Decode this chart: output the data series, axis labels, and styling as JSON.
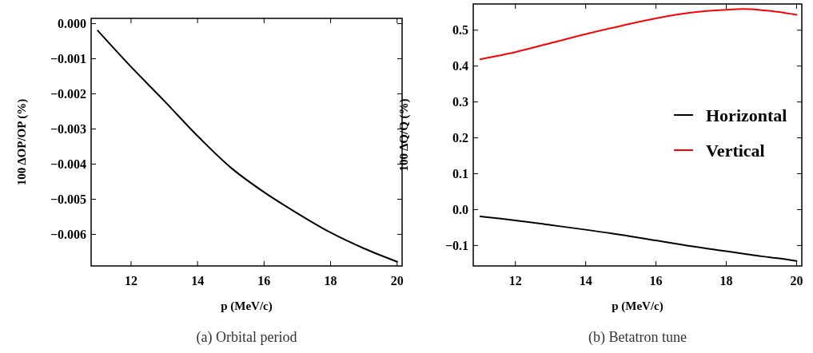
{
  "chart_data": [
    {
      "type": "line",
      "xlabel": "p (MeV/c)",
      "ylabel": "100 ΔOP/OP (%)",
      "annotations": [
        "(a) Orbital period"
      ],
      "x": [
        11,
        12,
        13,
        14,
        15,
        16,
        17,
        18,
        19,
        20
      ],
      "series": [
        {
          "color": "#000000",
          "values": [
            -0.0002,
            -0.00123,
            -0.0022,
            -0.0032,
            -0.0041,
            -0.0048,
            -0.0054,
            -0.00595,
            -0.0064,
            -0.00678
          ]
        }
      ],
      "xlim": [
        10.8,
        20.15
      ],
      "ylim": [
        -0.0069,
        0.00015
      ],
      "xticks": [
        12,
        14,
        16,
        18,
        20
      ],
      "yticks": [
        {
          "value": 0,
          "label": "0.000"
        },
        {
          "value": -0.001,
          "label": "−0.001"
        },
        {
          "value": -0.002,
          "label": "−0.002"
        },
        {
          "value": -0.003,
          "label": "−0.003"
        },
        {
          "value": -0.004,
          "label": "−0.004"
        },
        {
          "value": -0.005,
          "label": "−0.005"
        },
        {
          "value": -0.006,
          "label": "−0.006"
        }
      ],
      "grid": false,
      "legend": false
    },
    {
      "type": "line",
      "xlabel": "p (MeV/c)",
      "ylabel": "100 ΔQ/Q (%)",
      "annotations": [
        "(b) Betatron tune"
      ],
      "x": [
        11,
        12,
        13,
        14,
        15,
        16,
        17,
        18,
        18.5,
        19,
        19.5,
        20
      ],
      "series": [
        {
          "name": "Horizontal",
          "color": "#000000",
          "values": [
            -0.019,
            -0.03,
            -0.043,
            -0.056,
            -0.07,
            -0.086,
            -0.102,
            -0.116,
            -0.123,
            -0.13,
            -0.136,
            -0.143
          ]
        },
        {
          "name": "Vertical",
          "color": "#ff0000",
          "values": [
            0.419,
            0.439,
            0.464,
            0.489,
            0.512,
            0.533,
            0.549,
            0.557,
            0.559,
            0.556,
            0.551,
            0.543
          ]
        }
      ],
      "xlim": [
        10.8,
        20.15
      ],
      "ylim": [
        -0.157,
        0.573
      ],
      "xticks": [
        12,
        14,
        16,
        18,
        20
      ],
      "yticks": [
        {
          "value": -0.1,
          "label": "−0.1"
        },
        {
          "value": 0,
          "label": "0.0"
        },
        0.1,
        0.2,
        0.3,
        0.4,
        0.5
      ],
      "grid": false,
      "legend": "right"
    }
  ]
}
